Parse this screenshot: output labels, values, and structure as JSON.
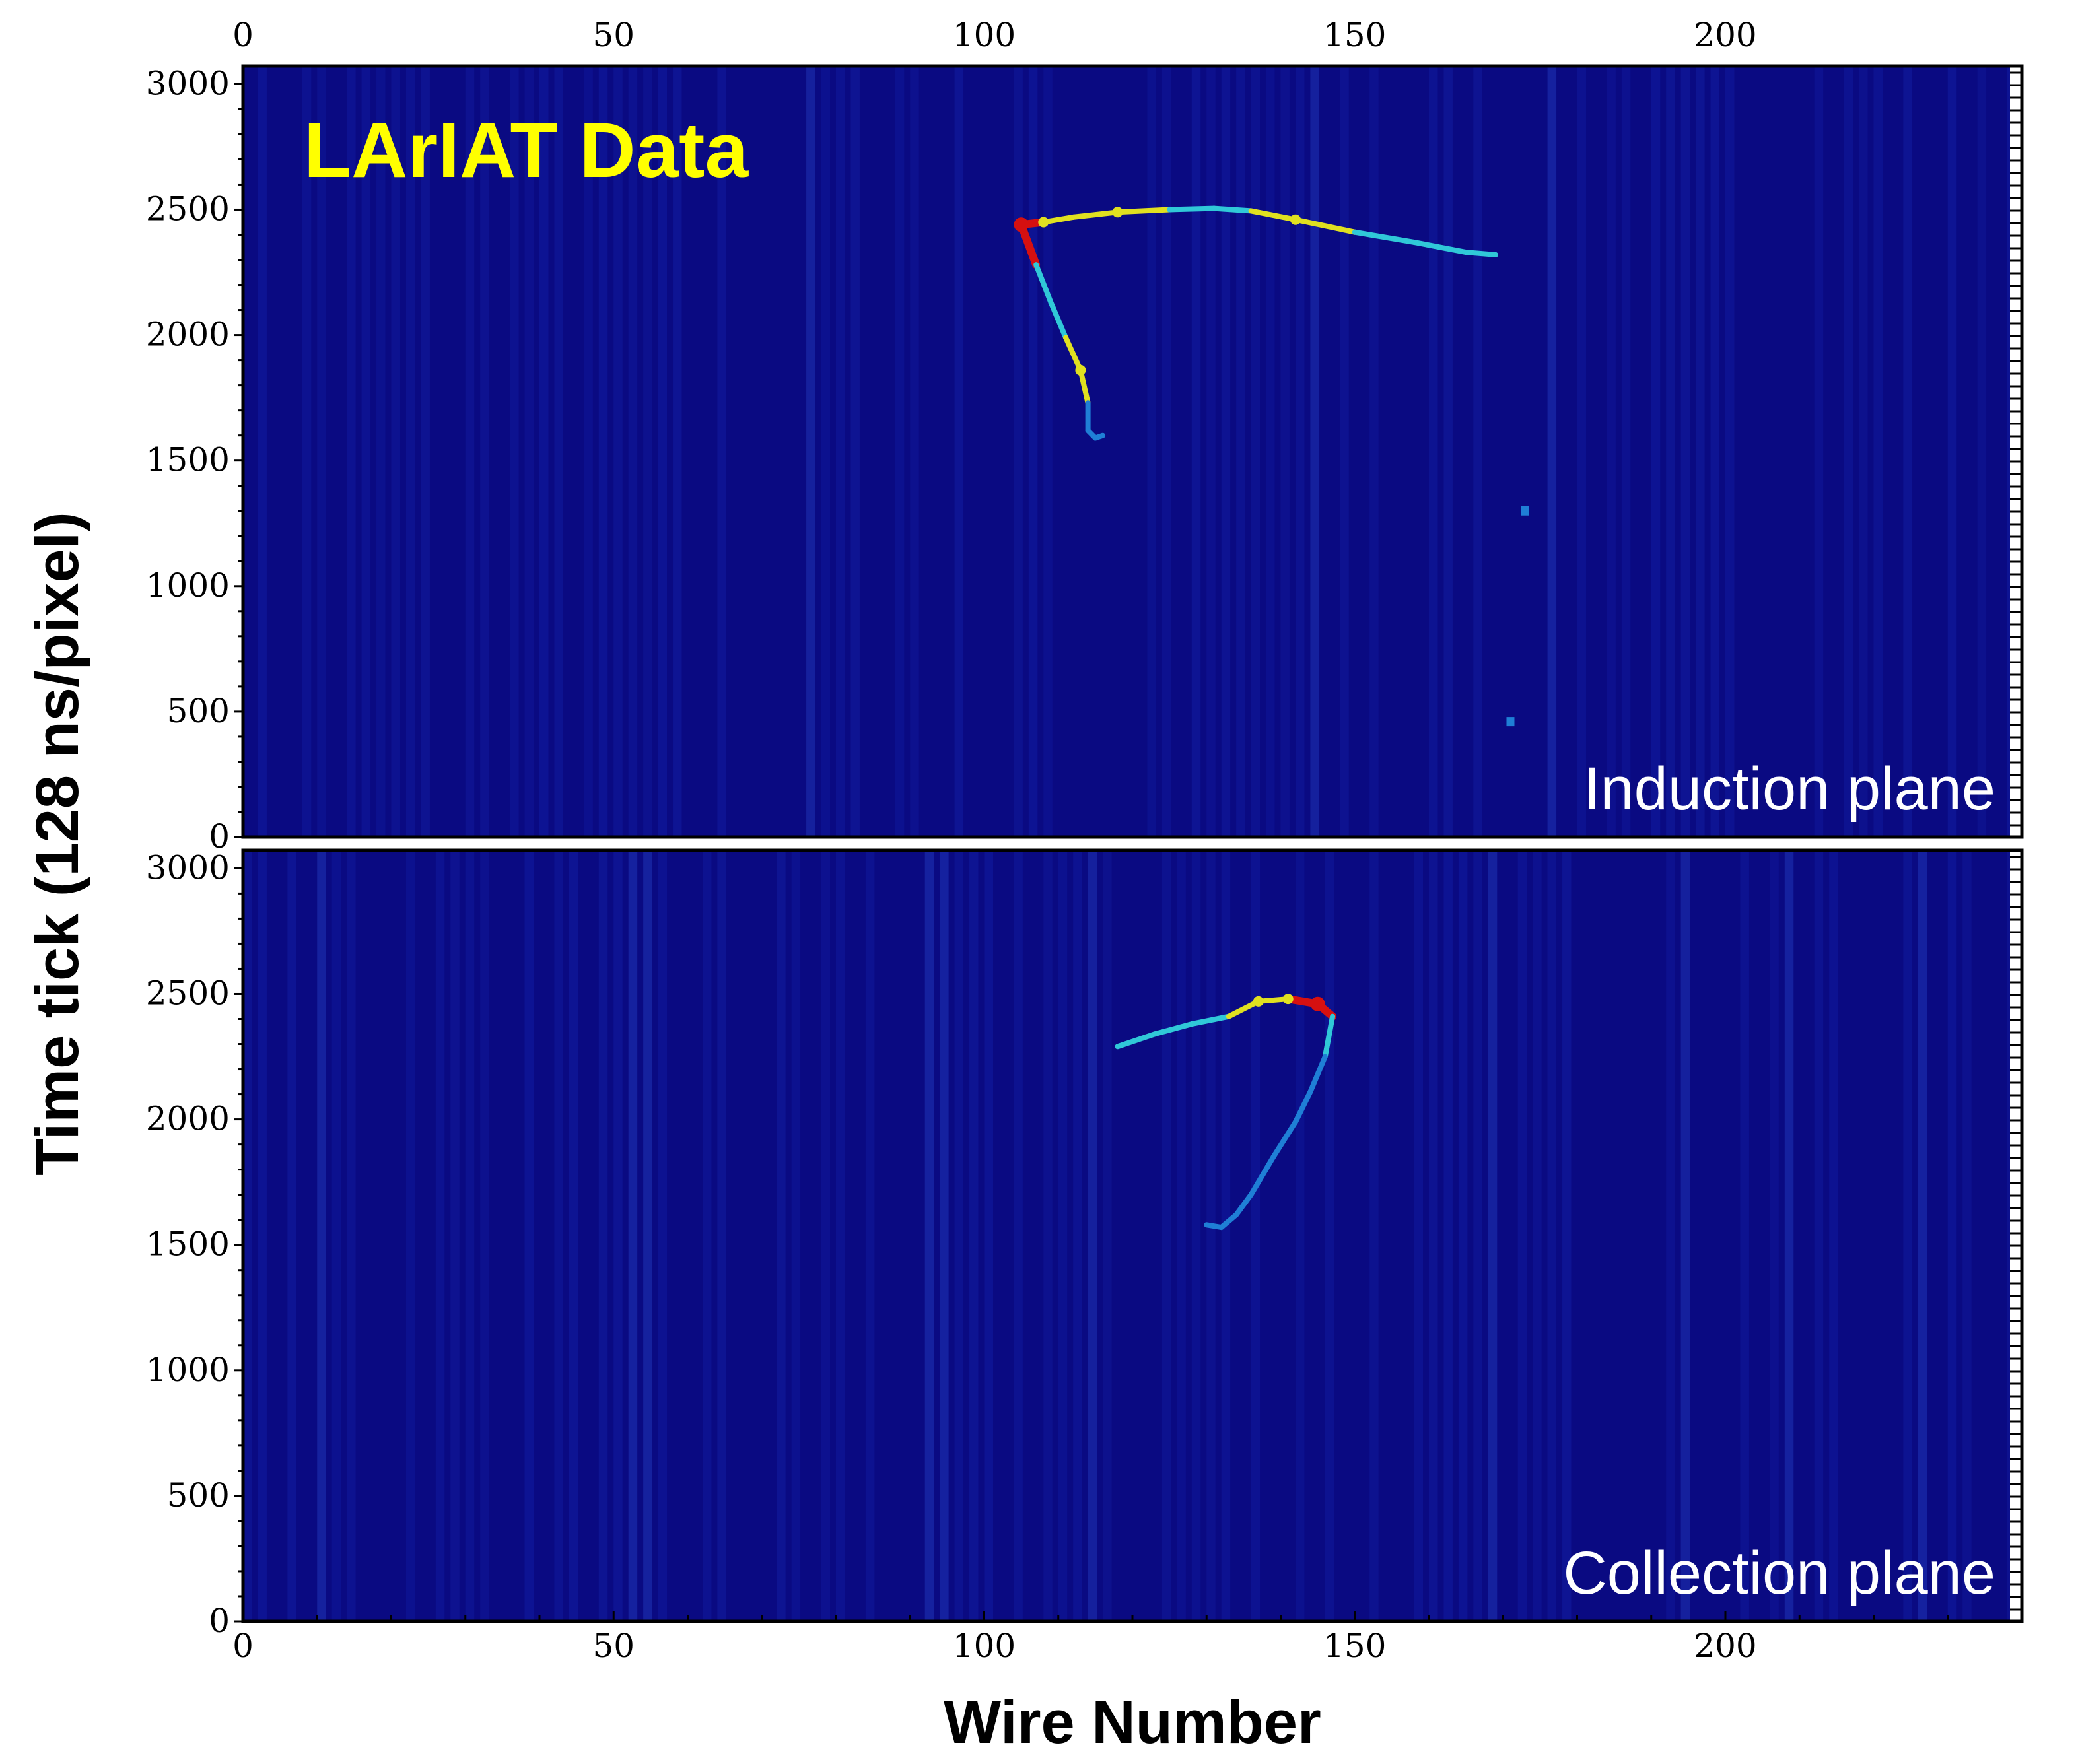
{
  "colors": {
    "background": "#0a0a82",
    "low_charge": "#1f7fd6",
    "mid_charge": "#30c8d8",
    "high_charge": "#e0e020",
    "peak_charge": "#d61010",
    "badge": "#ffff00",
    "plane_label": "#ffffff"
  },
  "chart_data": {
    "type": "heatmap",
    "xlabel": "Wire Number",
    "ylabel": "Time tick (128 ns/pixel)",
    "annotation": "LArIAT Data",
    "x_ticks": [
      "0",
      "50",
      "100",
      "150",
      "200"
    ],
    "y_ticks": [
      "0",
      "500",
      "1000",
      "1500",
      "2000",
      "2500",
      "3000"
    ],
    "xlim": [
      0,
      240
    ],
    "ylim": [
      0,
      3072
    ],
    "panels": [
      {
        "label": "Induction plane",
        "tracks": [
          {
            "x": [
              105,
              108,
              112,
              118,
              125,
              131,
              136,
              142,
              150,
              158,
              165,
              169
            ],
            "y": [
              2440,
              2450,
              2470,
              2490,
              2500,
              2505,
              2495,
              2460,
              2410,
              2370,
              2330,
              2320
            ],
            "charge": [
              1.0,
              0.55,
              0.5,
              0.6,
              0.45,
              0.45,
              0.4,
              0.6,
              0.45,
              0.4,
              0.4,
              0.35
            ]
          },
          {
            "x": [
              105,
              107,
              109,
              111,
              113,
              114,
              114,
              115,
              116
            ],
            "y": [
              2440,
              2280,
              2130,
              1990,
              1860,
              1730,
              1620,
              1590,
              1600
            ],
            "charge": [
              1.0,
              0.45,
              0.4,
              0.45,
              0.7,
              0.35,
              0.35,
              0.3,
              0.3
            ]
          }
        ],
        "hits": [
          {
            "x": 173,
            "y": 1300
          },
          {
            "x": 171,
            "y": 460
          }
        ]
      },
      {
        "label": "Collection plane",
        "tracks": [
          {
            "x": [
              118,
              123,
              128,
              133,
              137,
              141,
              145,
              147
            ],
            "y": [
              2290,
              2340,
              2380,
              2410,
              2470,
              2480,
              2460,
              2410
            ],
            "charge": [
              0.35,
              0.4,
              0.4,
              0.45,
              0.7,
              0.65,
              1.0,
              0.5
            ]
          },
          {
            "x": [
              147,
              146,
              144,
              142,
              139,
              136,
              134,
              132,
              130
            ],
            "y": [
              2410,
              2250,
              2110,
              1990,
              1850,
              1700,
              1620,
              1570,
              1580
            ],
            "charge": [
              0.5,
              0.3,
              0.3,
              0.28,
              0.28,
              0.25,
              0.25,
              0.25,
              0.25
            ]
          }
        ],
        "hits": []
      }
    ]
  }
}
